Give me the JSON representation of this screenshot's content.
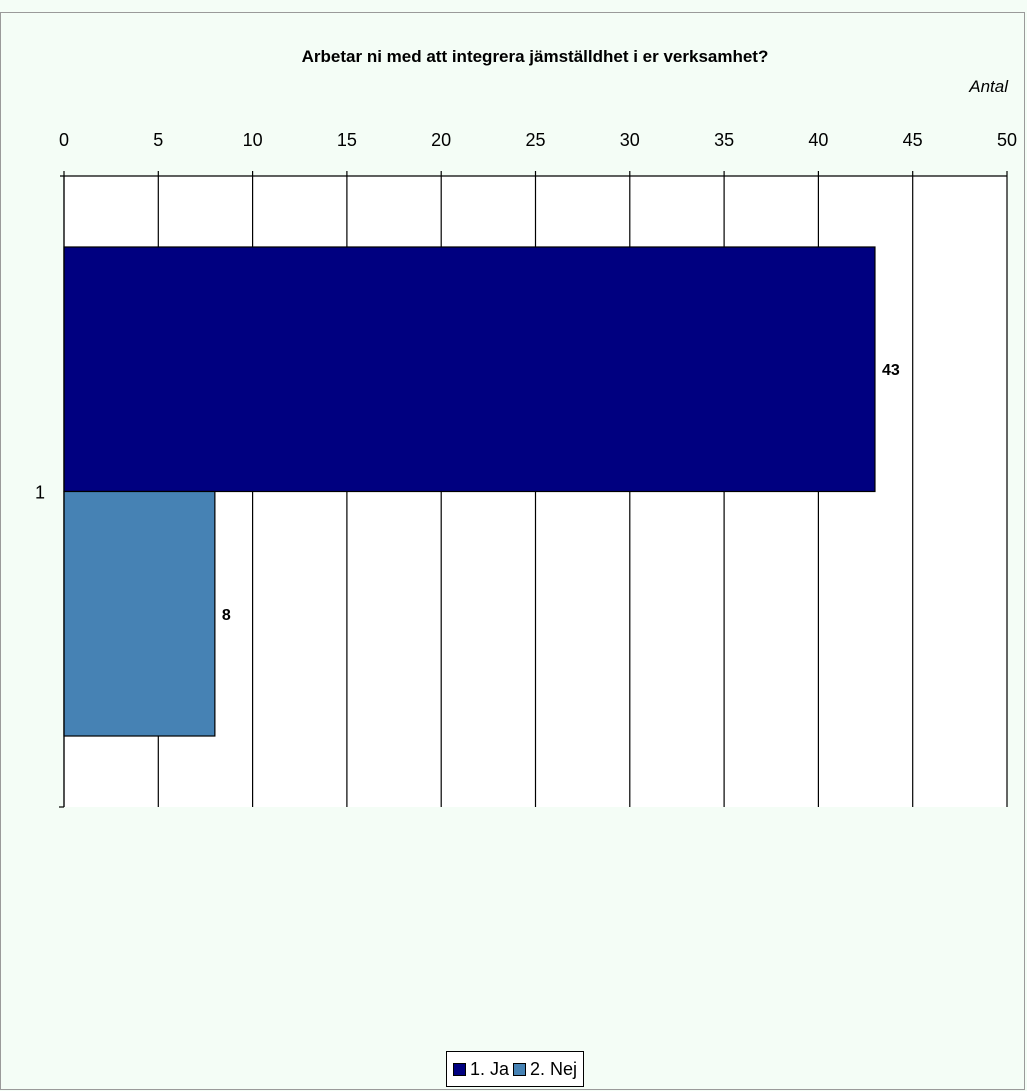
{
  "chart_data": {
    "type": "bar",
    "orientation": "horizontal",
    "title": "Arbetar ni med att integrera jämställdhet i er verksamhet?",
    "unit_label": "Antal",
    "categories": [
      "1"
    ],
    "series": [
      {
        "name": "1. Ja",
        "values": [
          43
        ],
        "color": "#000080"
      },
      {
        "name": "2. Nej",
        "values": [
          8
        ],
        "color": "#4682b4"
      }
    ],
    "xlim": [
      0,
      50
    ],
    "xticks": [
      0,
      5,
      10,
      15,
      20,
      25,
      30,
      35,
      40,
      45,
      50
    ],
    "value_axis_position": "top",
    "grid": true,
    "data_labels": true,
    "legend_position": "bottom"
  }
}
